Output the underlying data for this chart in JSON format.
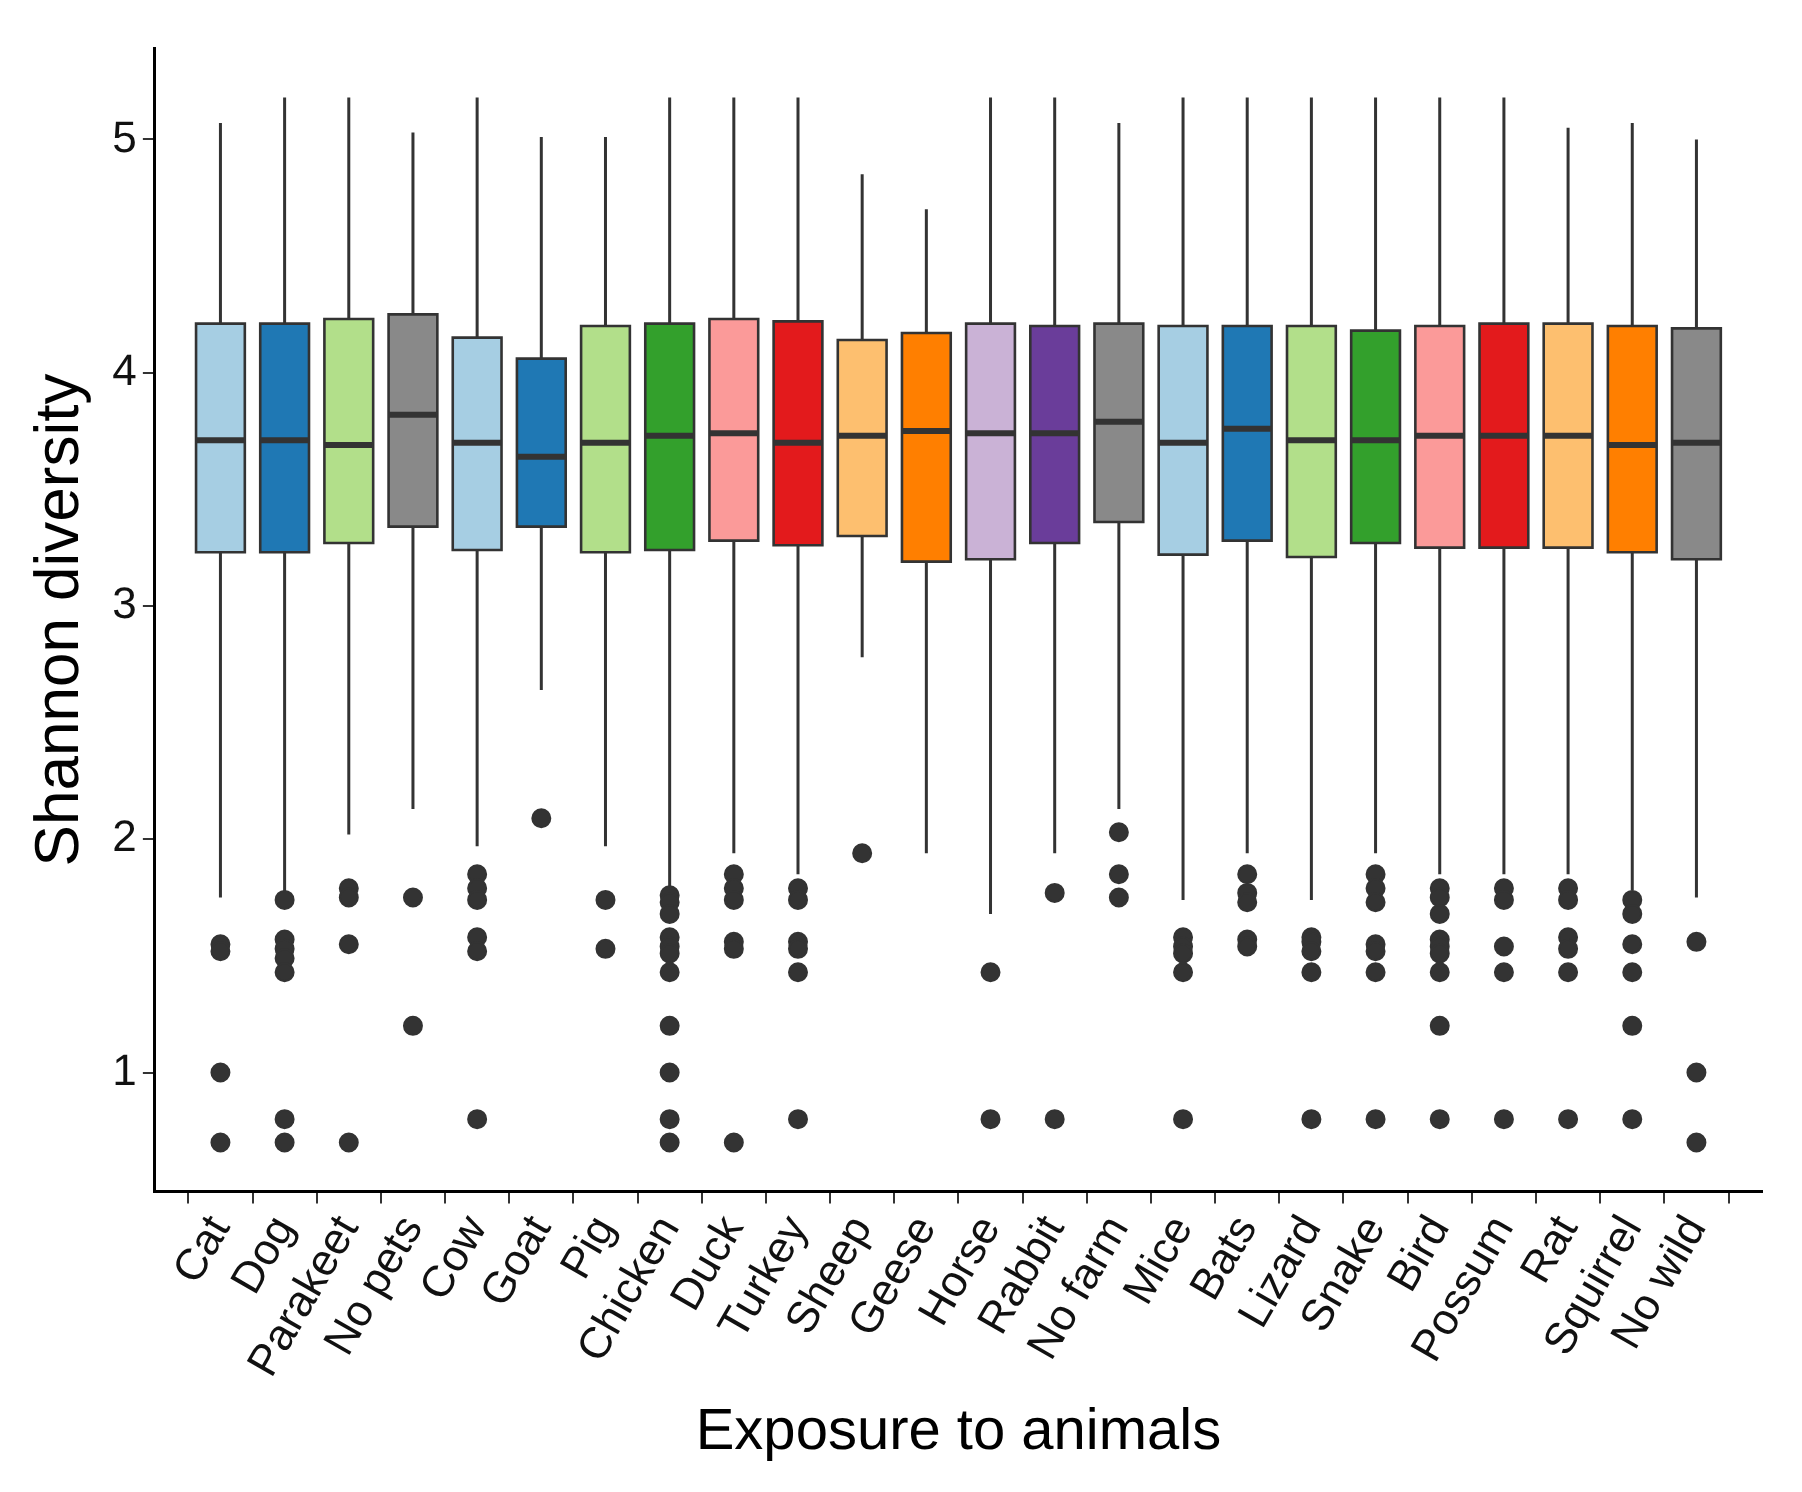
{
  "chart_data": {
    "type": "box",
    "xlabel": "Exposure to animals",
    "ylabel": "Shannon diversity",
    "categories": [
      "Cat",
      "Dog",
      "Parakeet",
      "No pets",
      "Cow",
      "Goat",
      "Pig",
      "Chicken",
      "Duck",
      "Turkey",
      "Sheep",
      "Geese",
      "Horse",
      "Rabbit",
      "No farm",
      "Mice",
      "Bats",
      "Lizard",
      "Snake",
      "Bird",
      "Possum",
      "Rat",
      "Squirrel",
      "No wild"
    ],
    "colors": [
      "#a6cee3",
      "#1f78b4",
      "#b2df8a",
      "#898989",
      "#a6cee3",
      "#1f78b4",
      "#b2df8a",
      "#33a02c",
      "#fb9a99",
      "#e31a1c",
      "#fdbf6f",
      "#ff7f00",
      "#cab2d6",
      "#6a3d9a",
      "#898989",
      "#a6cee3",
      "#1f78b4",
      "#b2df8a",
      "#33a02c",
      "#fb9a99",
      "#e31a1c",
      "#fdbf6f",
      "#ff7f00",
      "#898989"
    ],
    "boxes": [
      {
        "low": 1.75,
        "q1": 3.23,
        "median": 3.71,
        "q3": 4.21,
        "high": 5.07,
        "outliers": [
          1.55,
          1.52,
          1.0,
          0.7
        ]
      },
      {
        "low": 1.77,
        "q1": 3.23,
        "median": 3.71,
        "q3": 4.21,
        "high": 5.18,
        "outliers": [
          1.74,
          1.57,
          1.53,
          1.49,
          1.43,
          0.8,
          0.7
        ]
      },
      {
        "low": 2.02,
        "q1": 3.27,
        "median": 3.69,
        "q3": 4.23,
        "high": 5.18,
        "outliers": [
          1.79,
          1.75,
          1.55,
          0.7
        ]
      },
      {
        "low": 2.13,
        "q1": 3.34,
        "median": 3.82,
        "q3": 4.25,
        "high": 5.03,
        "outliers": [
          1.75,
          1.2
        ]
      },
      {
        "low": 1.97,
        "q1": 3.24,
        "median": 3.7,
        "q3": 4.15,
        "high": 5.18,
        "outliers": [
          1.85,
          1.79,
          1.74,
          1.58,
          1.52,
          0.8
        ]
      },
      {
        "low": 2.64,
        "q1": 3.34,
        "median": 3.64,
        "q3": 4.06,
        "high": 5.01,
        "outliers": [
          2.09
        ]
      },
      {
        "low": 1.97,
        "q1": 3.23,
        "median": 3.7,
        "q3": 4.2,
        "high": 5.01,
        "outliers": [
          1.74,
          1.53
        ]
      },
      {
        "low": 1.77,
        "q1": 3.24,
        "median": 3.73,
        "q3": 4.21,
        "high": 5.18,
        "outliers": [
          1.76,
          1.73,
          1.68,
          1.58,
          1.54,
          1.51,
          1.43,
          1.2,
          1.0,
          0.8,
          0.7
        ]
      },
      {
        "low": 1.94,
        "q1": 3.28,
        "median": 3.74,
        "q3": 4.23,
        "high": 5.18,
        "outliers": [
          1.85,
          1.79,
          1.74,
          1.56,
          1.53,
          0.7
        ]
      },
      {
        "low": 1.85,
        "q1": 3.26,
        "median": 3.7,
        "q3": 4.22,
        "high": 5.18,
        "outliers": [
          1.79,
          1.74,
          1.56,
          1.53,
          1.43,
          0.8
        ]
      },
      {
        "low": 2.78,
        "q1": 3.3,
        "median": 3.73,
        "q3": 4.14,
        "high": 4.85,
        "outliers": [
          1.94
        ]
      },
      {
        "low": 1.94,
        "q1": 3.19,
        "median": 3.75,
        "q3": 4.17,
        "high": 4.7
      },
      {
        "low": 1.68,
        "q1": 3.2,
        "median": 3.74,
        "q3": 4.21,
        "high": 5.18,
        "outliers": [
          1.43,
          0.8
        ]
      },
      {
        "low": 1.94,
        "q1": 3.27,
        "median": 3.74,
        "q3": 4.2,
        "high": 5.18,
        "outliers": [
          1.77,
          0.8
        ]
      },
      {
        "low": 2.13,
        "q1": 3.36,
        "median": 3.79,
        "q3": 4.21,
        "high": 5.07,
        "outliers": [
          2.03,
          1.85,
          1.75
        ]
      },
      {
        "low": 1.74,
        "q1": 3.22,
        "median": 3.7,
        "q3": 4.2,
        "high": 5.18,
        "outliers": [
          1.58,
          1.54,
          1.51,
          1.43,
          0.8
        ]
      },
      {
        "low": 1.94,
        "q1": 3.28,
        "median": 3.76,
        "q3": 4.2,
        "high": 5.18,
        "outliers": [
          1.85,
          1.77,
          1.73,
          1.57,
          1.54
        ]
      },
      {
        "low": 1.74,
        "q1": 3.21,
        "median": 3.71,
        "q3": 4.2,
        "high": 5.18,
        "outliers": [
          1.58,
          1.56,
          1.52,
          1.43,
          0.8
        ]
      },
      {
        "low": 1.94,
        "q1": 3.27,
        "median": 3.71,
        "q3": 4.18,
        "high": 5.18,
        "outliers": [
          1.85,
          1.79,
          1.73,
          1.55,
          1.52,
          1.43,
          0.8
        ]
      },
      {
        "low": 1.85,
        "q1": 3.25,
        "median": 3.73,
        "q3": 4.2,
        "high": 5.18,
        "outliers": [
          1.79,
          1.75,
          1.68,
          1.57,
          1.54,
          1.51,
          1.43,
          1.2,
          0.8
        ]
      },
      {
        "low": 1.85,
        "q1": 3.25,
        "median": 3.73,
        "q3": 4.21,
        "high": 5.18,
        "outliers": [
          1.79,
          1.74,
          1.54,
          1.43,
          0.8
        ]
      },
      {
        "low": 1.85,
        "q1": 3.25,
        "median": 3.73,
        "q3": 4.21,
        "high": 5.05,
        "outliers": [
          1.79,
          1.74,
          1.58,
          1.53,
          1.43,
          0.8
        ]
      },
      {
        "low": 1.78,
        "q1": 3.23,
        "median": 3.69,
        "q3": 4.2,
        "high": 5.07,
        "outliers": [
          1.74,
          1.68,
          1.55,
          1.43,
          1.2,
          0.8
        ]
      },
      {
        "low": 1.75,
        "q1": 3.2,
        "median": 3.7,
        "q3": 4.19,
        "high": 5.0,
        "outliers": [
          1.56,
          1.0,
          0.7
        ]
      }
    ],
    "ylim": [
      0.49,
      5.39
    ],
    "yticks": [
      1,
      2,
      3,
      4,
      5
    ],
    "grid": false,
    "legend": false
  }
}
